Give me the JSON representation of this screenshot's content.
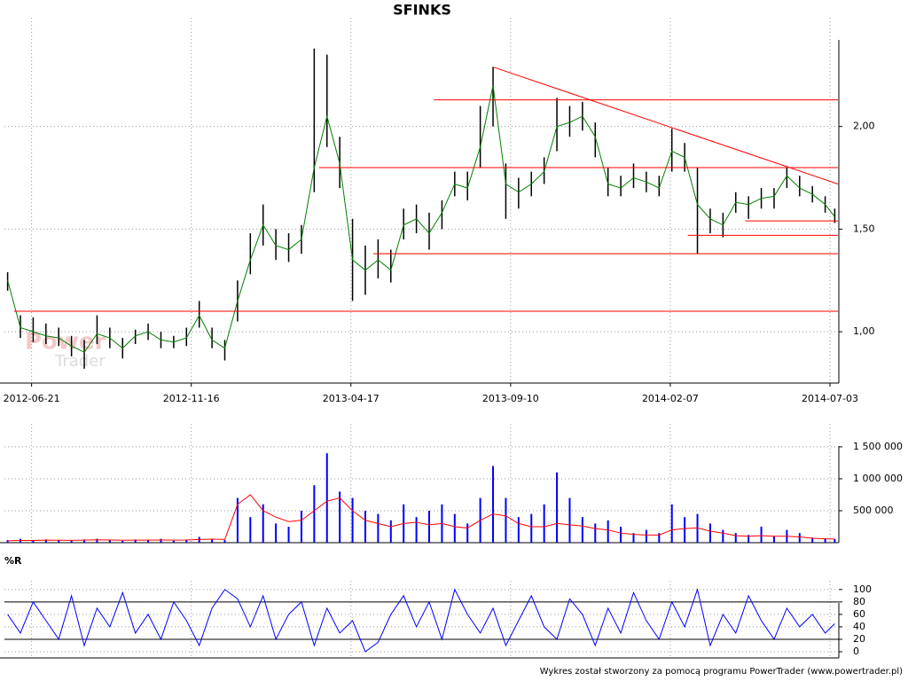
{
  "footer": "Wykres został stworzony za pomocą programu PowerTrader (www.powertrader.pl)",
  "chart_data": [
    {
      "type": "ohlc",
      "title": "SFINKS",
      "watermark": [
        "Power",
        "Trader"
      ],
      "x": [
        2,
        10,
        18,
        26,
        34,
        42,
        50,
        58,
        66,
        74,
        82,
        90,
        98,
        106,
        114,
        122,
        130,
        138,
        146,
        154,
        162,
        170,
        178,
        186,
        194,
        202,
        210,
        218,
        226,
        234,
        242,
        250,
        258,
        266,
        274,
        282,
        290,
        298,
        306,
        314,
        322,
        330,
        338,
        346,
        354,
        362,
        370,
        378,
        386,
        394,
        402,
        410,
        418,
        426,
        434,
        442,
        450,
        458,
        466,
        474,
        482,
        490,
        498,
        506,
        514,
        520
      ],
      "high": [
        1.29,
        1.08,
        1.07,
        1.04,
        1.02,
        0.98,
        0.96,
        1.08,
        1.02,
        0.97,
        1.01,
        1.04,
        1.0,
        0.98,
        1.02,
        1.15,
        1.02,
        0.96,
        1.25,
        1.48,
        1.62,
        1.5,
        1.48,
        1.52,
        2.38,
        2.35,
        1.95,
        1.55,
        1.42,
        1.45,
        1.4,
        1.6,
        1.62,
        1.58,
        1.64,
        1.78,
        1.78,
        2.1,
        2.29,
        1.82,
        1.75,
        1.78,
        1.85,
        2.14,
        2.1,
        2.12,
        2.02,
        1.8,
        1.76,
        1.82,
        1.78,
        1.76,
        1.99,
        1.92,
        1.8,
        1.6,
        1.58,
        1.68,
        1.66,
        1.7,
        1.7,
        1.8,
        1.76,
        1.71,
        1.66,
        1.6
      ],
      "low": [
        1.2,
        0.97,
        0.95,
        0.94,
        0.93,
        0.88,
        0.82,
        0.94,
        0.92,
        0.87,
        0.94,
        0.96,
        0.92,
        0.92,
        0.93,
        1.02,
        0.92,
        0.86,
        1.05,
        1.28,
        1.42,
        1.35,
        1.34,
        1.38,
        1.68,
        1.9,
        1.7,
        1.15,
        1.18,
        1.26,
        1.24,
        1.45,
        1.48,
        1.4,
        1.5,
        1.66,
        1.64,
        1.8,
        2.0,
        1.55,
        1.6,
        1.66,
        1.72,
        1.88,
        1.95,
        1.98,
        1.85,
        1.66,
        1.66,
        1.7,
        1.68,
        1.66,
        1.78,
        1.78,
        1.38,
        1.48,
        1.46,
        1.58,
        1.55,
        1.6,
        1.6,
        1.7,
        1.66,
        1.63,
        1.58,
        1.53
      ],
      "close": [
        1.25,
        1.02,
        1.0,
        0.98,
        0.97,
        0.93,
        0.9,
        0.99,
        0.97,
        0.92,
        0.98,
        1.0,
        0.96,
        0.95,
        0.97,
        1.08,
        0.96,
        0.92,
        1.15,
        1.35,
        1.52,
        1.42,
        1.4,
        1.45,
        1.8,
        2.05,
        1.82,
        1.35,
        1.3,
        1.35,
        1.3,
        1.52,
        1.55,
        1.48,
        1.58,
        1.72,
        1.7,
        1.9,
        2.2,
        1.72,
        1.68,
        1.72,
        1.78,
        2.0,
        2.02,
        2.05,
        1.95,
        1.72,
        1.7,
        1.75,
        1.73,
        1.7,
        1.88,
        1.85,
        1.62,
        1.55,
        1.52,
        1.63,
        1.62,
        1.65,
        1.66,
        1.76,
        1.7,
        1.67,
        1.62,
        1.56
      ],
      "bar_color": "#000000",
      "close_color": "#008000",
      "lines": [
        {
          "x": [
            269,
            522
          ],
          "y": [
            2.13,
            2.13
          ]
        },
        {
          "x": [
            306,
            522
          ],
          "y": [
            2.29,
            1.72
          ]
        },
        {
          "x": [
            197,
            522
          ],
          "y": [
            1.8,
            1.8
          ]
        },
        {
          "x": [
            464,
            522
          ],
          "y": [
            1.54,
            1.54
          ]
        },
        {
          "x": [
            428,
            522
          ],
          "y": [
            1.47,
            1.47
          ]
        },
        {
          "x": [
            231,
            522
          ],
          "y": [
            1.38,
            1.38
          ]
        },
        {
          "x": [
            6,
            522
          ],
          "y": [
            1.1,
            1.1
          ]
        }
      ],
      "line_color": "#ff0000",
      "xlim": [
        0,
        522
      ],
      "xticks": [
        {
          "value": 17,
          "label": "2012-06-21"
        },
        {
          "value": 117,
          "label": "2012-11-16"
        },
        {
          "value": 217,
          "label": "2013-04-17"
        },
        {
          "value": 317,
          "label": "2013-09-10"
        },
        {
          "value": 417,
          "label": "2014-02-07"
        },
        {
          "value": 517,
          "label": "2014-07-03"
        }
      ],
      "ylim": [
        0.75,
        2.53
      ],
      "yticks": [
        {
          "value": 1,
          "label": "1,00"
        },
        {
          "value": 1.5,
          "label": "1,50"
        },
        {
          "value": 2,
          "label": "2,00"
        }
      ],
      "grid": true
    },
    {
      "type": "bar",
      "x": [
        2,
        10,
        18,
        26,
        34,
        42,
        50,
        58,
        66,
        74,
        82,
        90,
        98,
        106,
        114,
        122,
        130,
        138,
        146,
        154,
        162,
        170,
        178,
        186,
        194,
        202,
        210,
        218,
        226,
        234,
        242,
        250,
        258,
        266,
        274,
        282,
        290,
        298,
        306,
        314,
        322,
        330,
        338,
        346,
        354,
        362,
        370,
        378,
        386,
        394,
        402,
        410,
        418,
        426,
        434,
        442,
        450,
        458,
        466,
        474,
        482,
        490,
        498,
        506,
        514,
        520
      ],
      "values": [
        40000,
        60000,
        30000,
        50000,
        40000,
        30000,
        50000,
        60000,
        40000,
        30000,
        50000,
        40000,
        60000,
        30000,
        50000,
        90000,
        60000,
        40000,
        700000,
        400000,
        600000,
        300000,
        250000,
        500000,
        900000,
        1400000,
        800000,
        700000,
        500000,
        450000,
        350000,
        600000,
        400000,
        500000,
        600000,
        450000,
        300000,
        700000,
        1200000,
        700000,
        400000,
        450000,
        600000,
        1100000,
        700000,
        400000,
        300000,
        350000,
        250000,
        150000,
        200000,
        150000,
        600000,
        400000,
        450000,
        300000,
        200000,
        150000,
        120000,
        250000,
        100000,
        200000,
        150000,
        80000,
        70000,
        60000
      ],
      "color": "#0000ff",
      "avg_values": [
        30000,
        35000,
        35000,
        40000,
        38000,
        36000,
        40000,
        45000,
        42000,
        38000,
        40000,
        40000,
        42000,
        40000,
        42000,
        50000,
        55000,
        50000,
        600000,
        750000,
        500000,
        400000,
        330000,
        350000,
        500000,
        650000,
        700000,
        500000,
        350000,
        300000,
        250000,
        300000,
        320000,
        280000,
        300000,
        250000,
        230000,
        350000,
        450000,
        420000,
        300000,
        250000,
        250000,
        300000,
        280000,
        260000,
        220000,
        200000,
        150000,
        130000,
        120000,
        120000,
        200000,
        220000,
        230000,
        180000,
        150000,
        110000,
        100000,
        110000,
        100000,
        100000,
        90000,
        70000,
        60000,
        55000
      ],
      "avg_color": "#ff0000",
      "xlim": [
        0,
        522
      ],
      "ylim": [
        0,
        1860000
      ],
      "yticks": [
        {
          "value": 500000,
          "label": "500 000"
        },
        {
          "value": 1000000,
          "label": "1 000 000"
        },
        {
          "value": 1500000,
          "label": "1 500 000"
        }
      ],
      "grid": true
    },
    {
      "type": "line",
      "title": "%R",
      "x": [
        2,
        10,
        18,
        26,
        34,
        42,
        50,
        58,
        66,
        74,
        82,
        90,
        98,
        106,
        114,
        122,
        130,
        138,
        146,
        154,
        162,
        170,
        178,
        186,
        194,
        202,
        210,
        218,
        226,
        234,
        242,
        250,
        258,
        266,
        274,
        282,
        290,
        298,
        306,
        314,
        322,
        330,
        338,
        346,
        354,
        362,
        370,
        378,
        386,
        394,
        402,
        410,
        418,
        426,
        434,
        442,
        450,
        458,
        466,
        474,
        482,
        490,
        498,
        506,
        514,
        520
      ],
      "values": [
        60,
        30,
        80,
        50,
        20,
        90,
        10,
        70,
        40,
        95,
        30,
        60,
        20,
        80,
        50,
        10,
        70,
        100,
        85,
        40,
        90,
        20,
        60,
        80,
        10,
        70,
        30,
        50,
        0,
        15,
        60,
        90,
        40,
        80,
        20,
        100,
        60,
        30,
        70,
        10,
        50,
        90,
        40,
        20,
        85,
        60,
        10,
        70,
        30,
        95,
        50,
        20,
        80,
        40,
        100,
        10,
        60,
        30,
        90,
        50,
        20,
        70,
        40,
        60,
        30,
        45
      ],
      "color": "#0000ff",
      "levels": [
        20,
        80
      ],
      "xlim": [
        0,
        522
      ],
      "ylim": [
        -10,
        114
      ],
      "yticks": [
        0,
        20,
        40,
        60,
        80,
        100
      ],
      "grid": true
    }
  ]
}
